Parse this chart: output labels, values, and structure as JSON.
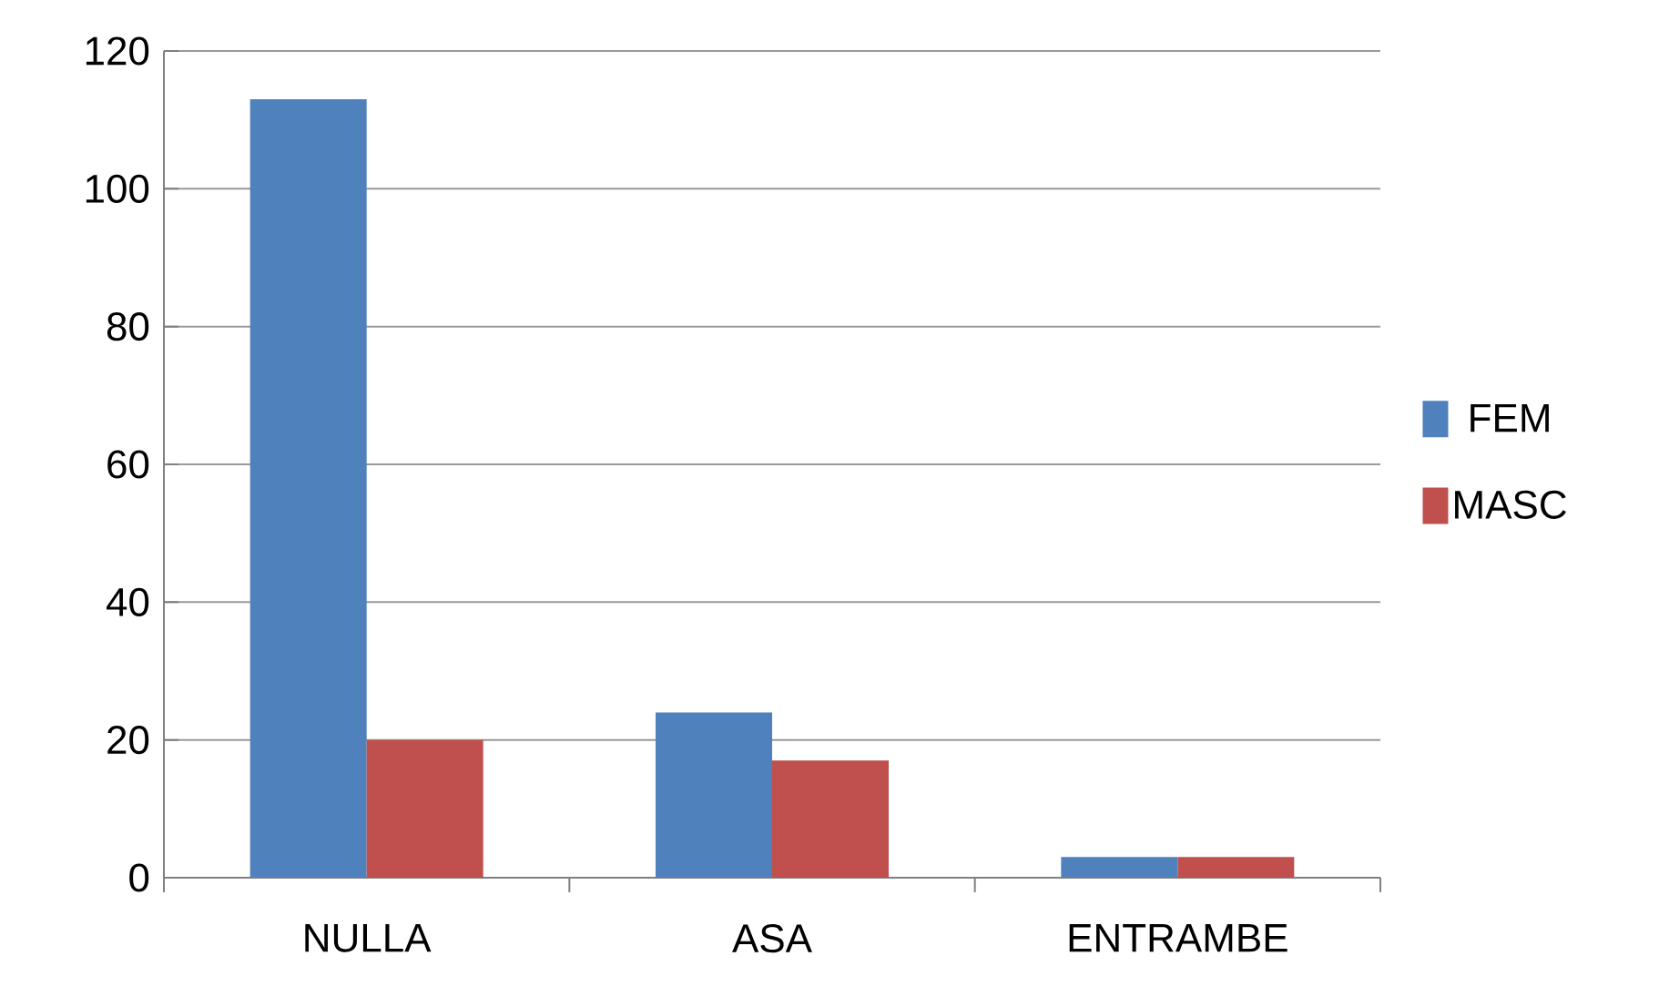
{
  "chart_data": {
    "type": "bar",
    "categories": [
      "NULLA",
      "ASA",
      "ENTRAMBE"
    ],
    "series": [
      {
        "name": "FEM",
        "color": "#4f81bd",
        "values": [
          113,
          24,
          3
        ]
      },
      {
        "name": "MASC",
        "color": "#c0504d",
        "values": [
          20,
          17,
          3
        ]
      }
    ],
    "ylim": [
      0,
      120
    ],
    "yticks": [
      0,
      20,
      40,
      60,
      80,
      100,
      120
    ],
    "grid": "y",
    "legend": "right"
  }
}
